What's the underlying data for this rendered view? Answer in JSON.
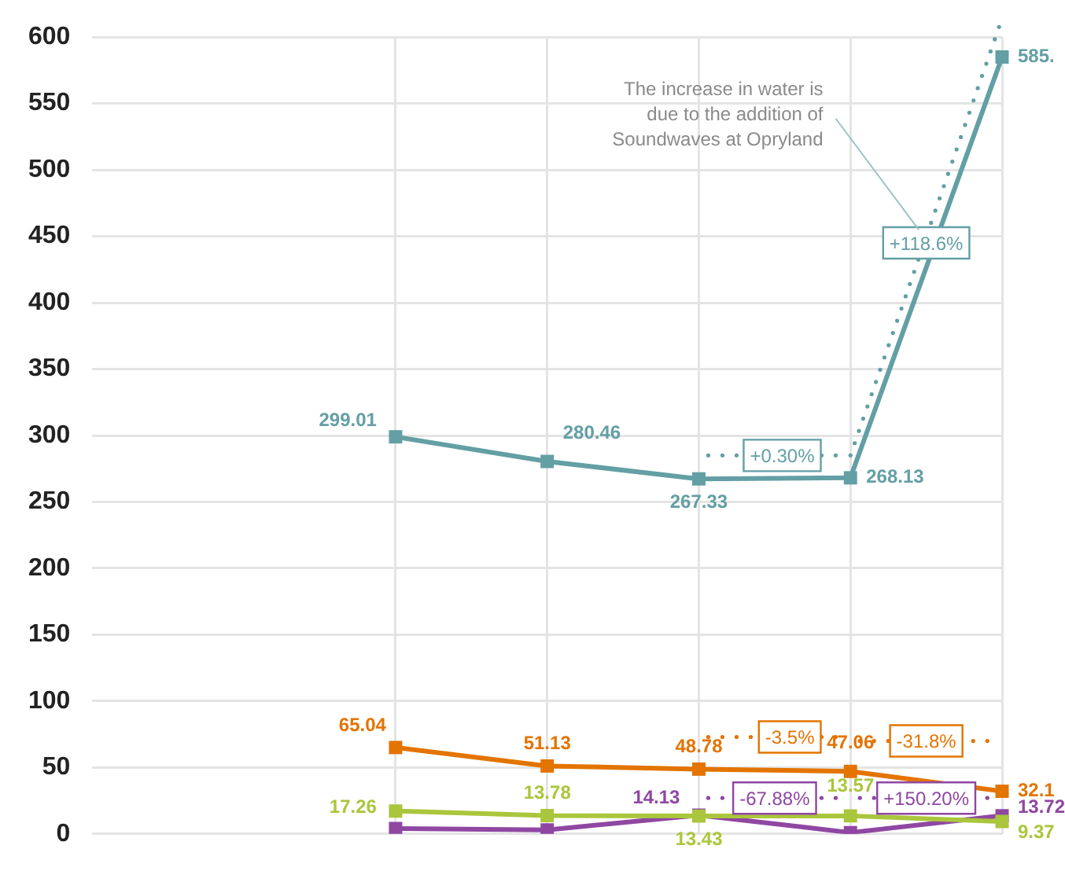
{
  "chart_data": {
    "type": "line",
    "categories": [
      null,
      null,
      null,
      null,
      null,
      null,
      null
    ],
    "series": [
      {
        "color": "#639fa4",
        "values": [
          null,
          null,
          299.01,
          280.46,
          267.33,
          268.13,
          585
        ],
        "value_labels": [
          null,
          null,
          "299.01",
          "280.46",
          "267.33",
          "268.13",
          "585."
        ]
      },
      {
        "color": "#e37400",
        "values": [
          null,
          null,
          65.04,
          51.13,
          48.78,
          47.06,
          32.1
        ],
        "value_labels": [
          null,
          null,
          "65.04",
          "51.13",
          "48.78",
          "47.06",
          "32.1"
        ]
      },
      {
        "color": "#aac63c",
        "values": [
          null,
          null,
          17.26,
          13.78,
          13.43,
          13.57,
          9.37
        ],
        "value_labels": [
          null,
          null,
          "17.26",
          "13.78",
          "13.43",
          "13.57",
          "9.37"
        ]
      },
      {
        "color": "#8f47a2",
        "values": [
          null,
          null,
          4,
          3,
          14.13,
          1,
          13.72
        ],
        "value_labels": [
          null,
          null,
          null,
          null,
          "14.13",
          null,
          "13.72"
        ]
      }
    ],
    "ylim": [
      0,
      600
    ],
    "yticks": [
      0,
      50,
      100,
      150,
      200,
      250,
      300,
      350,
      400,
      450,
      500,
      550,
      600
    ],
    "grid": true,
    "legend": false,
    "marker": "square",
    "tick_labels": "y",
    "annotations": [
      "+0.30%",
      "+118.6%",
      "-3.5%",
      "-31.8%",
      "-67.88%",
      "+150.20%",
      "The increase in water is due to the addition of Soundwaves at Opryland"
    ]
  }
}
